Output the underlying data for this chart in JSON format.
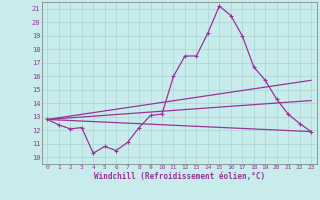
{
  "xlabel": "Windchill (Refroidissement éolien,°C)",
  "xlim": [
    -0.5,
    23.5
  ],
  "ylim": [
    9.5,
    21.5
  ],
  "yticks": [
    10,
    11,
    12,
    13,
    14,
    15,
    16,
    17,
    18,
    19,
    20,
    21
  ],
  "xticks": [
    0,
    1,
    2,
    3,
    4,
    5,
    6,
    7,
    8,
    9,
    10,
    11,
    12,
    13,
    14,
    15,
    16,
    17,
    18,
    19,
    20,
    21,
    22,
    23
  ],
  "bg_color": "#c8ecec",
  "grid_color": "#b0d8d8",
  "line_color": "#993399",
  "line1_x": [
    0,
    1,
    2,
    3,
    4,
    5,
    6,
    7,
    8,
    9,
    10,
    11,
    12,
    13,
    14,
    15,
    16,
    17,
    18,
    19,
    20,
    21,
    22,
    23
  ],
  "line1_y": [
    12.8,
    12.4,
    12.1,
    12.2,
    10.3,
    10.8,
    10.5,
    11.1,
    12.2,
    13.1,
    13.2,
    16.0,
    17.5,
    17.5,
    19.2,
    21.2,
    20.5,
    19.0,
    16.7,
    15.7,
    14.3,
    13.2,
    12.5,
    11.9
  ],
  "line2_x": [
    0,
    23
  ],
  "line2_y": [
    12.8,
    15.7
  ],
  "line3_x": [
    0,
    23
  ],
  "line3_y": [
    12.8,
    14.2
  ],
  "line4_x": [
    0,
    23
  ],
  "line4_y": [
    12.8,
    11.9
  ]
}
